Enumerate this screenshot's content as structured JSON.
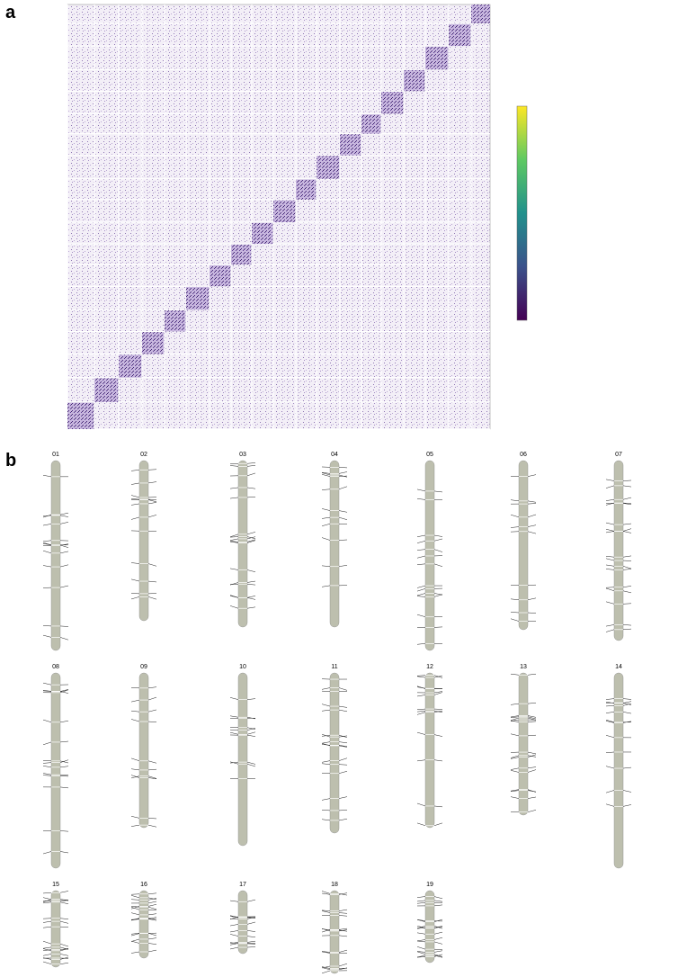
{
  "panels": [
    {
      "label": "a"
    },
    {
      "label": "b",
      "linkage_groups": [
        "01",
        "02",
        "03",
        "04",
        "05",
        "06",
        "07",
        "08",
        "09",
        "10",
        "11",
        "12",
        "13",
        "14",
        "15",
        "16",
        "17",
        "18",
        "19"
      ]
    }
  ]
}
